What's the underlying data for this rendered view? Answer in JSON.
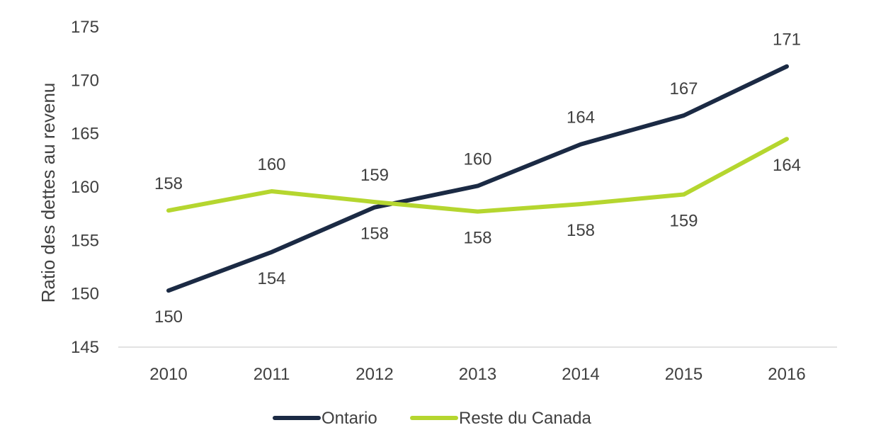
{
  "chart_data": {
    "type": "line",
    "title": "",
    "xlabel": "",
    "ylabel": "Ratio des dettes au revenu",
    "categories": [
      "2010",
      "2011",
      "2012",
      "2013",
      "2014",
      "2015",
      "2016"
    ],
    "ylim": [
      145,
      175
    ],
    "yticks": [
      "145",
      "150",
      "155",
      "160",
      "165",
      "170",
      "175"
    ],
    "series": [
      {
        "name": "Ontario",
        "color": "#1b2a44",
        "values": [
          150.3,
          153.9,
          158.1,
          160.1,
          164.0,
          166.7,
          171.3
        ],
        "labels": [
          "150",
          "154",
          "158",
          "160",
          "164",
          "167",
          "171"
        ]
      },
      {
        "name": "Reste du Canada",
        "color": "#b5d62f",
        "values": [
          157.8,
          159.6,
          158.6,
          157.7,
          158.4,
          159.3,
          164.5
        ],
        "labels": [
          "158",
          "160",
          "159",
          "158",
          "158",
          "159",
          "164"
        ]
      }
    ],
    "legend_position": "bottom"
  }
}
